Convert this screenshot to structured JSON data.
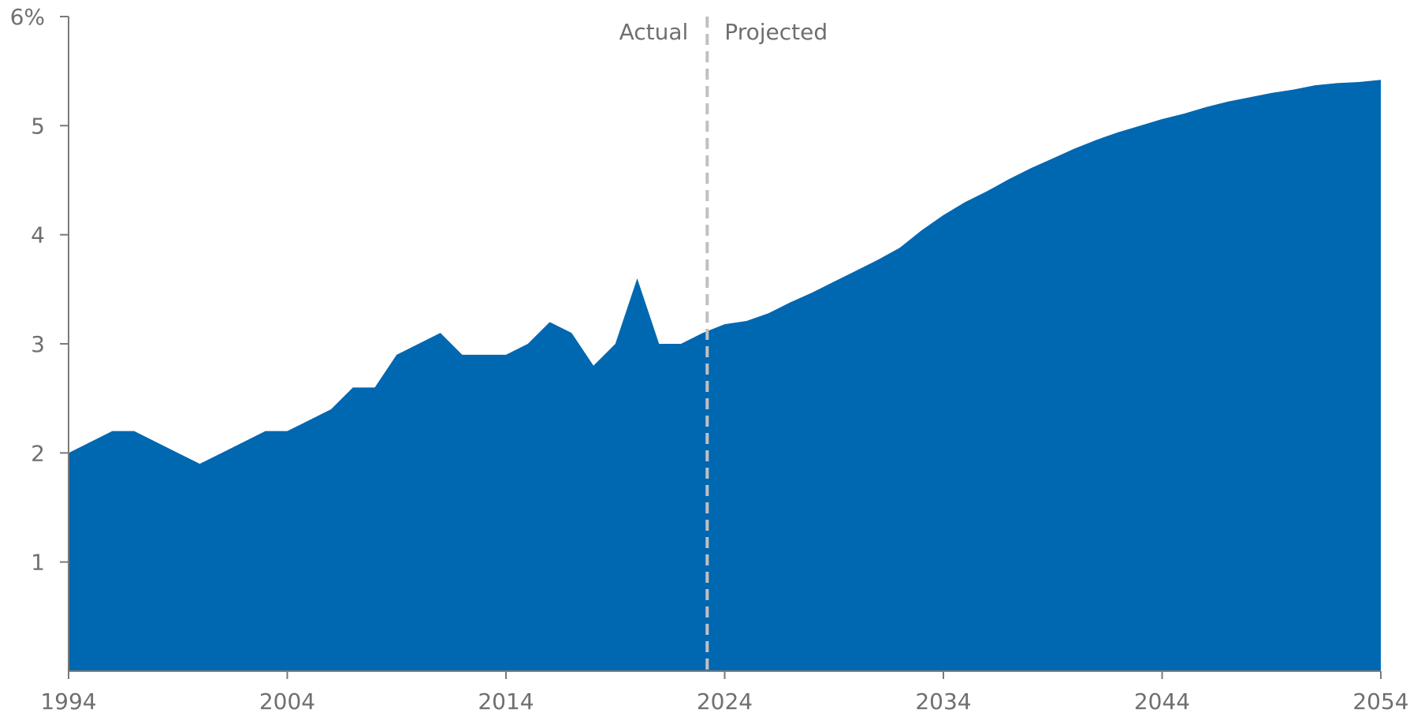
{
  "chart_data": {
    "type": "area",
    "title": "",
    "xlabel": "",
    "ylabel": "",
    "xlim": [
      1994,
      2054
    ],
    "ylim": [
      0,
      6
    ],
    "x_ticks": [
      {
        "value": 1994,
        "label": "1994"
      },
      {
        "value": 2004,
        "label": "2004"
      },
      {
        "value": 2014,
        "label": "2014"
      },
      {
        "value": 2024,
        "label": "2024"
      },
      {
        "value": 2034,
        "label": "2034"
      },
      {
        "value": 2044,
        "label": "2044"
      },
      {
        "value": 2054,
        "label": "2054"
      }
    ],
    "y_ticks": [
      {
        "value": 1,
        "label": "1"
      },
      {
        "value": 2,
        "label": "2"
      },
      {
        "value": 3,
        "label": "3"
      },
      {
        "value": 4,
        "label": "4"
      },
      {
        "value": 5,
        "label": "5"
      },
      {
        "value": 6,
        "label": "6%"
      }
    ],
    "grid": false,
    "legend": "none",
    "colors": {
      "area": "#0067b1",
      "divider": "#c0c0c0",
      "axis": "#7a7a7a",
      "text": "#6f6f6f"
    },
    "divider": {
      "x": 2023.2,
      "left_label": "Actual",
      "right_label": "Projected"
    },
    "series": [
      {
        "x": [
          1994,
          1995,
          1996,
          1997,
          1998,
          1999,
          2000,
          2001,
          2002,
          2003,
          2004,
          2005,
          2006,
          2007,
          2008,
          2009,
          2010,
          2011,
          2012,
          2013,
          2014,
          2015,
          2016,
          2017,
          2018,
          2019,
          2020,
          2021,
          2022,
          2023,
          2024,
          2025,
          2026,
          2027,
          2028,
          2029,
          2030,
          2031,
          2032,
          2033,
          2034,
          2035,
          2036,
          2037,
          2038,
          2039,
          2040,
          2041,
          2042,
          2043,
          2044,
          2045,
          2046,
          2047,
          2048,
          2049,
          2050,
          2051,
          2052,
          2053,
          2054
        ],
        "values": [
          2.0,
          2.1,
          2.2,
          2.2,
          2.1,
          2.0,
          1.9,
          2.0,
          2.1,
          2.2,
          2.2,
          2.3,
          2.4,
          2.6,
          2.6,
          2.9,
          3.0,
          3.1,
          2.9,
          2.9,
          2.9,
          3.0,
          3.2,
          3.1,
          2.8,
          3.0,
          3.6,
          3.0,
          3.0,
          3.1,
          3.18,
          3.21,
          3.28,
          3.38,
          3.47,
          3.57,
          3.67,
          3.77,
          3.88,
          4.04,
          4.18,
          4.3,
          4.4,
          4.51,
          4.61,
          4.7,
          4.79,
          4.87,
          4.94,
          5.0,
          5.06,
          5.11,
          5.17,
          5.22,
          5.26,
          5.3,
          5.33,
          5.37,
          5.39,
          5.4,
          5.42
        ]
      }
    ]
  }
}
